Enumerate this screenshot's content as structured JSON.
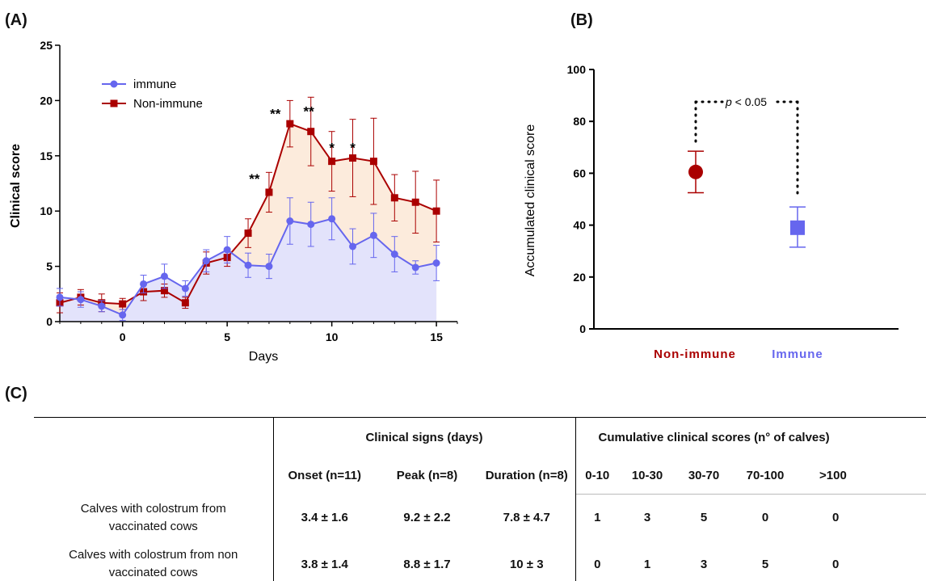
{
  "panel_labels": {
    "a": "(A)",
    "b": "(B)",
    "c": "(C)"
  },
  "colors": {
    "immune": "#6666ee",
    "non_immune": "#aa0000",
    "immune_fill": "#e3e3fb",
    "non_immune_fill": "#fcebdc"
  },
  "chart_data": [
    {
      "type": "line",
      "panel": "A",
      "xlabel": "Days",
      "ylabel": "Clinical score",
      "xlim": [
        -3,
        16
      ],
      "ylim": [
        0,
        25
      ],
      "xticks": [
        0,
        5,
        10,
        15
      ],
      "yticks": [
        0,
        5,
        10,
        15,
        20,
        25
      ],
      "legend_position": "top-left",
      "x": [
        -3,
        -2,
        -1,
        0,
        1,
        2,
        3,
        4,
        5,
        6,
        7,
        8,
        9,
        10,
        11,
        12,
        13,
        14,
        15
      ],
      "series": [
        {
          "name": "immune",
          "marker": "circle",
          "values": [
            2.2,
            2.0,
            1.4,
            0.6,
            3.4,
            4.1,
            3.0,
            5.5,
            6.5,
            5.1,
            5.0,
            9.1,
            8.8,
            9.3,
            6.8,
            7.8,
            6.1,
            4.9,
            5.3
          ],
          "errors": [
            0.8,
            0.7,
            0.5,
            0.5,
            0.8,
            1.1,
            0.7,
            1.0,
            1.2,
            1.1,
            1.1,
            2.1,
            2.0,
            1.9,
            1.6,
            2.0,
            1.6,
            0.6,
            1.6
          ]
        },
        {
          "name": "Non-immune",
          "marker": "square",
          "values": [
            1.7,
            2.2,
            1.7,
            1.6,
            2.7,
            2.8,
            1.7,
            5.3,
            5.8,
            8.0,
            11.7,
            17.9,
            17.2,
            14.5,
            14.8,
            14.5,
            11.2,
            10.8,
            10.0
          ],
          "errors": [
            0.9,
            0.7,
            0.8,
            0.5,
            0.8,
            0.6,
            0.5,
            1.0,
            0.8,
            1.3,
            1.8,
            2.1,
            3.1,
            2.7,
            3.5,
            3.9,
            2.1,
            2.8,
            2.8
          ]
        }
      ],
      "annotations": [
        {
          "text": "**",
          "x": 6.3,
          "y": 12.5
        },
        {
          "text": "**",
          "x": 7.3,
          "y": 18.4
        },
        {
          "text": "**",
          "x": 8.9,
          "y": 18.6
        },
        {
          "text": "*",
          "x": 10.0,
          "y": 15.3
        },
        {
          "text": "*",
          "x": 11.0,
          "y": 15.3
        }
      ]
    },
    {
      "type": "scatter",
      "panel": "B",
      "ylabel": "Accumulated clinical score",
      "ylim": [
        0,
        100
      ],
      "yticks": [
        0,
        20,
        40,
        60,
        80,
        100
      ],
      "categories": [
        "Non-immune",
        "Immune"
      ],
      "series": [
        {
          "name": "Non-immune",
          "marker": "circle",
          "value": 60.5,
          "error_low": 52.5,
          "error_high": 68.5
        },
        {
          "name": "Immune",
          "marker": "square",
          "value": 39,
          "error_low": 31.5,
          "error_high": 47
        }
      ],
      "significance": {
        "prefix": "p",
        "text": " < 0.05"
      }
    }
  ],
  "table": {
    "group_headers": [
      "Clinical signs (days)",
      "Cumulative clinical scores (n° of calves)"
    ],
    "columns": [
      "Onset (n=11)",
      "Peak (n=8)",
      "Duration (n=8)",
      "0-10",
      "10-30",
      "30-70",
      "70-100",
      ">100"
    ],
    "rows": [
      {
        "label": "Calves with colostrum from vaccinated cows",
        "cells": [
          "3.4 ± 1.6",
          "9.2 ± 2.2",
          "7.8 ± 4.7",
          "1",
          "3",
          "5",
          "0",
          "0"
        ]
      },
      {
        "label": "Calves with colostrum from non vaccinated cows",
        "cells": [
          "3.8 ± 1.4",
          "8.8 ± 1.7",
          "10 ± 3",
          "0",
          "1",
          "3",
          "5",
          "0"
        ]
      }
    ]
  }
}
